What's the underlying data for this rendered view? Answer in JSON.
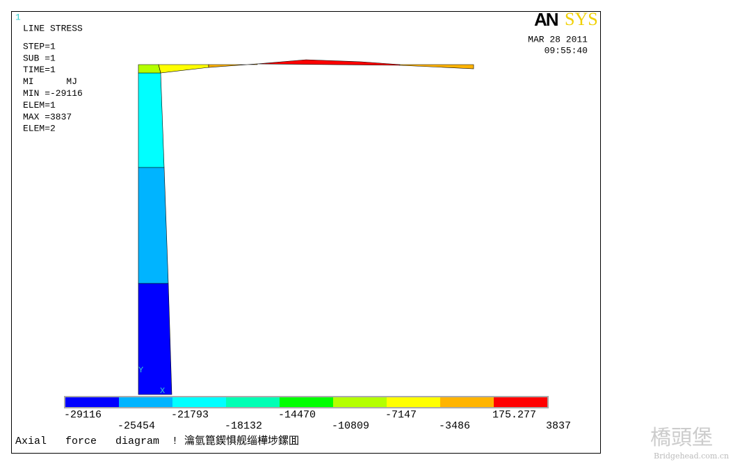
{
  "window_number": "1",
  "header": {
    "title": "LINE STRESS",
    "lines": [
      "STEP=1",
      "SUB =1",
      "TIME=1",
      "MI      MJ",
      "MIN =-29116",
      "ELEM=1",
      "MAX =3837",
      "ELEM=2"
    ]
  },
  "logo": {
    "left": "AN",
    "right": "SYS"
  },
  "date": "MAR 28 2011",
  "time": "09:55:40",
  "triad": {
    "y": "Y",
    "x": "X"
  },
  "legend": {
    "labels": [
      -29116,
      -25454,
      -21793,
      -18132,
      -14470,
      -10809,
      -7147,
      -3486,
      175.277,
      3837
    ],
    "colors": [
      "#0000ff",
      "#00b4ff",
      "#00ffff",
      "#00ffb4",
      "#00ff00",
      "#b4ff00",
      "#ffff00",
      "#ffb400",
      "#ff0000"
    ]
  },
  "caption": "Axial   force   diagram  ! 瀹氫箟鍥惧舰缁樺埗鏍囬",
  "watermark": {
    "main": "橋頭堡",
    "site": "Bridgehead.com.cn"
  }
}
